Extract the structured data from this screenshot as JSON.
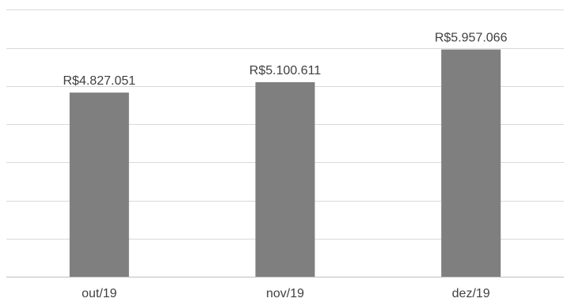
{
  "chart_data": {
    "type": "bar",
    "categories": [
      "out/19",
      "nov/19",
      "dez/19"
    ],
    "values": [
      4827051,
      5100611,
      5957066
    ],
    "data_labels": [
      "R$4.827.051",
      "R$5.100.611",
      "R$5.957.066"
    ],
    "ylim": [
      0,
      7000000
    ],
    "y_grid_step": 1000000,
    "grid": true,
    "y_tick_labels_visible": false,
    "bar_color": "#7f7f7f",
    "title": "",
    "xlabel": "",
    "ylabel": ""
  }
}
